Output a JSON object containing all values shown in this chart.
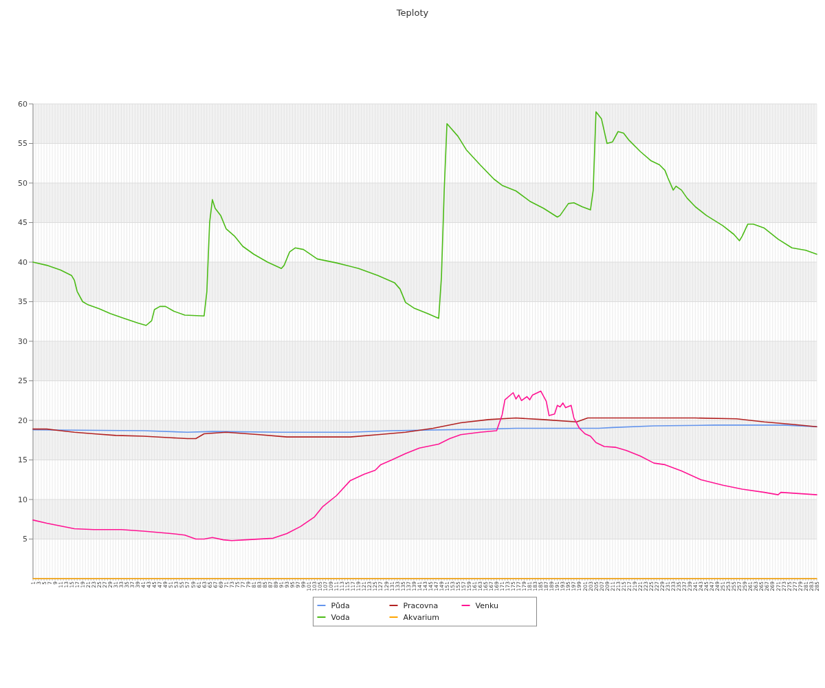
{
  "chart_data": {
    "type": "line",
    "title": "Teploty",
    "ylim": [
      0,
      60
    ],
    "yticks": [
      5,
      10,
      15,
      20,
      25,
      30,
      35,
      40,
      45,
      50,
      55,
      60
    ],
    "xlim": [
      1,
      285
    ],
    "xticks": [
      1,
      {
        "value": 2,
        "label": null
      },
      3,
      {
        "value": 4,
        "label": null
      },
      5,
      {
        "value": 6,
        "label": null
      },
      7,
      {
        "value": 8,
        "label": null
      },
      9,
      {
        "value": 10,
        "label": null
      },
      11,
      {
        "value": 12,
        "label": null
      },
      13,
      {
        "value": 14,
        "label": null
      },
      15,
      {
        "value": 16,
        "label": null
      },
      17,
      {
        "value": 18,
        "label": null
      },
      19,
      {
        "value": 20,
        "label": null
      },
      21,
      {
        "value": 22,
        "label": null
      },
      23,
      {
        "value": 24,
        "label": null
      },
      25,
      {
        "value": 26,
        "label": null
      },
      27,
      {
        "value": 28,
        "label": null
      },
      29,
      {
        "value": 30,
        "label": null
      },
      31,
      {
        "value": 32,
        "label": null
      },
      33,
      {
        "value": 34,
        "label": null
      },
      35,
      {
        "value": 36,
        "label": null
      },
      37,
      {
        "value": 38,
        "label": null
      },
      39,
      {
        "value": 40,
        "label": null
      },
      41,
      {
        "value": 42,
        "label": null
      },
      43,
      {
        "value": 44,
        "label": null
      },
      45,
      {
        "value": 46,
        "label": null
      },
      47,
      {
        "value": 48,
        "label": null
      },
      49,
      {
        "value": 50,
        "label": null
      },
      51,
      {
        "value": 52,
        "label": null
      },
      53,
      {
        "value": 54,
        "label": null
      },
      55,
      {
        "value": 56,
        "label": null
      },
      57,
      {
        "value": 58,
        "label": null
      },
      59,
      {
        "value": 60,
        "label": null
      },
      61,
      {
        "value": 62,
        "label": null
      },
      63,
      {
        "value": 64,
        "label": null
      },
      65,
      {
        "value": 66,
        "label": null
      },
      67,
      {
        "value": 68,
        "label": null
      },
      69,
      {
        "value": 70,
        "label": null
      },
      71,
      {
        "value": 72,
        "label": null
      },
      73,
      {
        "value": 74,
        "label": null
      },
      75,
      {
        "value": 76,
        "label": null
      },
      77,
      {
        "value": 78,
        "label": null
      },
      79,
      {
        "value": 80,
        "label": null
      },
      81,
      {
        "value": 82,
        "label": null
      },
      83,
      {
        "value": 84,
        "label": null
      },
      85,
      {
        "value": 86,
        "label": null
      },
      87,
      {
        "value": 88,
        "label": null
      },
      89,
      {
        "value": 90,
        "label": null
      },
      91,
      {
        "value": 92,
        "label": null
      },
      93,
      {
        "value": 94,
        "label": null
      },
      95,
      {
        "value": 96,
        "label": null
      },
      97,
      {
        "value": 98,
        "label": null
      },
      99,
      {
        "value": 100,
        "label": null
      },
      101,
      {
        "value": 102,
        "label": null
      },
      103,
      {
        "value": 104,
        "label": null
      },
      105,
      {
        "value": 106,
        "label": null
      },
      107,
      {
        "value": 108,
        "label": null
      },
      109,
      {
        "value": 110,
        "label": null
      },
      111,
      {
        "value": 112,
        "label": null
      },
      113,
      {
        "value": 114,
        "label": null
      },
      115,
      {
        "value": 116,
        "label": null
      },
      117,
      {
        "value": 118,
        "label": null
      },
      119,
      {
        "value": 120,
        "label": null
      },
      121,
      {
        "value": 122,
        "label": null
      },
      123,
      {
        "value": 124,
        "label": null
      },
      125,
      {
        "value": 126,
        "label": null
      },
      127,
      {
        "value": 128,
        "label": null
      },
      129,
      {
        "value": 130,
        "label": null
      },
      131,
      {
        "value": 132,
        "label": null
      },
      133,
      {
        "value": 134,
        "label": null
      },
      135,
      {
        "value": 136,
        "label": null
      },
      137,
      {
        "value": 138,
        "label": null
      },
      139,
      {
        "value": 140,
        "label": null
      },
      141,
      {
        "value": 142,
        "label": null
      },
      143,
      {
        "value": 144,
        "label": null
      },
      145,
      {
        "value": 146,
        "label": null
      },
      147,
      {
        "value": 148,
        "label": null
      },
      149,
      {
        "value": 150,
        "label": null
      },
      151,
      {
        "value": 152,
        "label": null
      },
      153,
      {
        "value": 154,
        "label": null
      },
      155,
      {
        "value": 156,
        "label": null
      },
      157,
      {
        "value": 158,
        "label": null
      },
      159,
      {
        "value": 160,
        "label": null
      },
      161,
      {
        "value": 162,
        "label": null
      },
      163,
      {
        "value": 164,
        "label": null
      },
      165,
      {
        "value": 166,
        "label": null
      },
      167,
      {
        "value": 168,
        "label": null
      },
      169,
      {
        "value": 170,
        "label": null
      },
      171,
      {
        "value": 172,
        "label": null
      },
      173,
      {
        "value": 174,
        "label": null
      },
      175,
      {
        "value": 176,
        "label": null
      },
      177,
      {
        "value": 178,
        "label": null
      },
      179,
      {
        "value": 180,
        "label": null
      },
      181,
      {
        "value": 182,
        "label": null
      },
      183,
      {
        "value": 184,
        "label": null
      },
      185,
      {
        "value": 186,
        "label": null
      },
      187,
      {
        "value": 188,
        "label": null
      },
      189,
      {
        "value": 190,
        "label": null
      },
      191,
      {
        "value": 192,
        "label": null
      },
      193,
      {
        "value": 194,
        "label": null
      },
      195,
      {
        "value": 196,
        "label": null
      },
      197,
      {
        "value": 198,
        "label": null
      },
      199,
      {
        "value": 200,
        "label": null
      },
      201,
      {
        "value": 202,
        "label": null
      },
      203,
      {
        "value": 204,
        "label": null
      },
      205,
      {
        "value": 206,
        "label": null
      },
      207,
      {
        "value": 208,
        "label": null
      },
      209,
      {
        "value": 210,
        "label": null
      },
      211,
      {
        "value": 212,
        "label": null
      },
      213,
      {
        "value": 214,
        "label": null
      },
      215,
      {
        "value": 216,
        "label": null
      },
      217,
      {
        "value": 218,
        "label": null
      },
      219,
      {
        "value": 220,
        "label": null
      },
      221,
      {
        "value": 222,
        "label": null
      },
      223,
      {
        "value": 224,
        "label": null
      },
      225,
      {
        "value": 226,
        "label": null
      },
      227,
      {
        "value": 228,
        "label": null
      },
      229,
      {
        "value": 230,
        "label": null
      },
      231,
      {
        "value": 232,
        "label": null
      },
      233,
      {
        "value": 234,
        "label": null
      },
      235,
      {
        "value": 236,
        "label": null
      },
      237,
      {
        "value": 238,
        "label": null
      },
      239,
      {
        "value": 240,
        "label": null
      },
      241,
      {
        "value": 242,
        "label": null
      },
      243,
      {
        "value": 244,
        "label": null
      },
      245,
      {
        "value": 246,
        "label": null
      },
      247,
      {
        "value": 248,
        "label": null
      },
      249,
      {
        "value": 250,
        "label": null
      },
      251,
      {
        "value": 252,
        "label": null
      },
      253,
      {
        "value": 254,
        "label": null
      },
      255,
      {
        "value": 256,
        "label": null
      },
      257,
      {
        "value": 258,
        "label": null
      },
      259,
      {
        "value": 260,
        "label": null
      },
      261,
      {
        "value": 262,
        "label": null
      },
      263,
      {
        "value": 264,
        "label": null
      },
      265,
      {
        "value": 266,
        "label": null
      },
      267,
      {
        "value": 268,
        "label": null
      },
      269,
      {
        "value": 270,
        "label": null
      },
      271,
      {
        "value": 272,
        "label": null
      },
      273,
      {
        "value": 274,
        "label": null
      },
      275,
      {
        "value": 276,
        "label": null
      },
      277,
      {
        "value": 278,
        "label": null
      },
      279,
      {
        "value": 280,
        "label": null
      },
      281,
      {
        "value": 282,
        "label": null
      },
      283,
      {
        "value": 284,
        "label": null
      },
      285
    ],
    "grid": true,
    "legend": "bottom",
    "series": [
      {
        "name": "Půda",
        "color": "#6495ed",
        "x": [
          1,
          41,
          57,
          66,
          91,
          116,
          131,
          166,
          176,
          206,
          211,
          226,
          248,
          273,
          285
        ],
        "values": [
          18.8,
          18.7,
          18.5,
          18.6,
          18.5,
          18.5,
          18.7,
          18.9,
          19.0,
          19.0,
          19.1,
          19.3,
          19.4,
          19.4,
          19.2
        ]
      },
      {
        "name": "Voda",
        "color": "#4cbb17",
        "x": [
          1,
          6,
          11,
          15,
          16,
          17,
          19,
          21,
          25,
          29,
          34,
          39,
          42,
          44,
          45,
          47,
          49,
          52,
          56,
          63,
          64,
          65,
          66,
          67,
          69,
          71,
          74,
          77,
          81,
          86,
          91,
          92,
          94,
          96,
          99,
          104,
          111,
          119,
          126,
          132,
          134,
          136,
          139,
          144,
          148,
          149,
          150,
          151,
          155,
          158,
          163,
          168,
          171,
          176,
          181,
          186,
          191,
          192,
          195,
          197,
          200,
          203,
          204,
          205,
          207,
          209,
          211,
          213,
          215,
          217,
          221,
          225,
          228,
          230,
          231,
          233,
          234,
          236,
          238,
          241,
          245,
          251,
          255,
          257,
          258,
          260,
          262,
          266,
          271,
          276,
          281,
          285
        ],
        "values": [
          40.0,
          39.6,
          39.0,
          38.3,
          37.7,
          36.3,
          35.0,
          34.6,
          34.1,
          33.5,
          32.9,
          32.3,
          32.0,
          32.6,
          34.0,
          34.4,
          34.4,
          33.8,
          33.3,
          33.2,
          36.3,
          45.0,
          47.9,
          46.8,
          45.9,
          44.2,
          43.3,
          42.0,
          41.0,
          40.0,
          39.2,
          39.6,
          41.3,
          41.8,
          41.6,
          40.4,
          39.9,
          39.2,
          38.3,
          37.4,
          36.6,
          34.9,
          34.2,
          33.5,
          32.9,
          38.1,
          49.0,
          57.5,
          55.9,
          54.2,
          52.3,
          50.5,
          49.7,
          49.0,
          47.7,
          46.8,
          45.7,
          45.9,
          47.4,
          47.5,
          47.0,
          46.6,
          49.1,
          59.0,
          58.1,
          55.0,
          55.2,
          56.5,
          56.3,
          55.4,
          54.0,
          52.8,
          52.3,
          51.6,
          50.7,
          49.1,
          49.6,
          49.1,
          48.1,
          47.0,
          45.9,
          44.6,
          43.5,
          42.7,
          43.3,
          44.8,
          44.8,
          44.3,
          42.9,
          41.8,
          41.5,
          41.0
        ]
      },
      {
        "name": "Pracovna",
        "color": "#b22222",
        "x": [
          1,
          6,
          11,
          16,
          23,
          31,
          41,
          51,
          57,
          60,
          63,
          71,
          83,
          93,
          116,
          126,
          136,
          146,
          156,
          166,
          176,
          186,
          198,
          202,
          216,
          241,
          256,
          266,
          276,
          285
        ],
        "values": [
          18.9,
          18.9,
          18.7,
          18.5,
          18.3,
          18.1,
          18.0,
          17.8,
          17.7,
          17.7,
          18.3,
          18.5,
          18.2,
          17.9,
          17.9,
          18.2,
          18.5,
          19.0,
          19.7,
          20.1,
          20.3,
          20.1,
          19.8,
          20.3,
          20.3,
          20.3,
          20.2,
          19.8,
          19.5,
          19.2
        ]
      },
      {
        "name": "Akvarium",
        "color": "#ffa500",
        "x": [
          1,
          285
        ],
        "values": [
          0,
          0
        ]
      },
      {
        "name": "Venku",
        "color": "#ff1493",
        "x": [
          1,
          6,
          16,
          23,
          33,
          41,
          51,
          56,
          60,
          63,
          66,
          70,
          73,
          78,
          88,
          93,
          98,
          103,
          106,
          111,
          116,
          121,
          125,
          127,
          131,
          136,
          141,
          148,
          152,
          156,
          163,
          169,
          171,
          172,
          175,
          176,
          177,
          178,
          180,
          181,
          182,
          185,
          187,
          188,
          190,
          191,
          192,
          193,
          194,
          196,
          197,
          199,
          201,
          203,
          205,
          208,
          212,
          216,
          221,
          226,
          230,
          236,
          243,
          251,
          258,
          266,
          271,
          272,
          285
        ],
        "values": [
          7.4,
          7.0,
          6.3,
          6.2,
          6.2,
          6.0,
          5.7,
          5.5,
          5.0,
          5.0,
          5.2,
          4.9,
          4.8,
          4.9,
          5.1,
          5.7,
          6.6,
          7.8,
          9.1,
          10.5,
          12.4,
          13.2,
          13.7,
          14.4,
          15.0,
          15.8,
          16.5,
          17.0,
          17.7,
          18.2,
          18.5,
          18.7,
          20.7,
          22.6,
          23.5,
          22.7,
          23.2,
          22.5,
          23.0,
          22.6,
          23.2,
          23.7,
          22.4,
          20.6,
          20.8,
          21.9,
          21.7,
          22.2,
          21.6,
          21.9,
          20.3,
          19.0,
          18.3,
          18.0,
          17.2,
          16.7,
          16.6,
          16.2,
          15.5,
          14.6,
          14.4,
          13.6,
          12.5,
          11.8,
          11.3,
          10.9,
          10.6,
          10.9,
          10.6
        ]
      }
    ]
  }
}
